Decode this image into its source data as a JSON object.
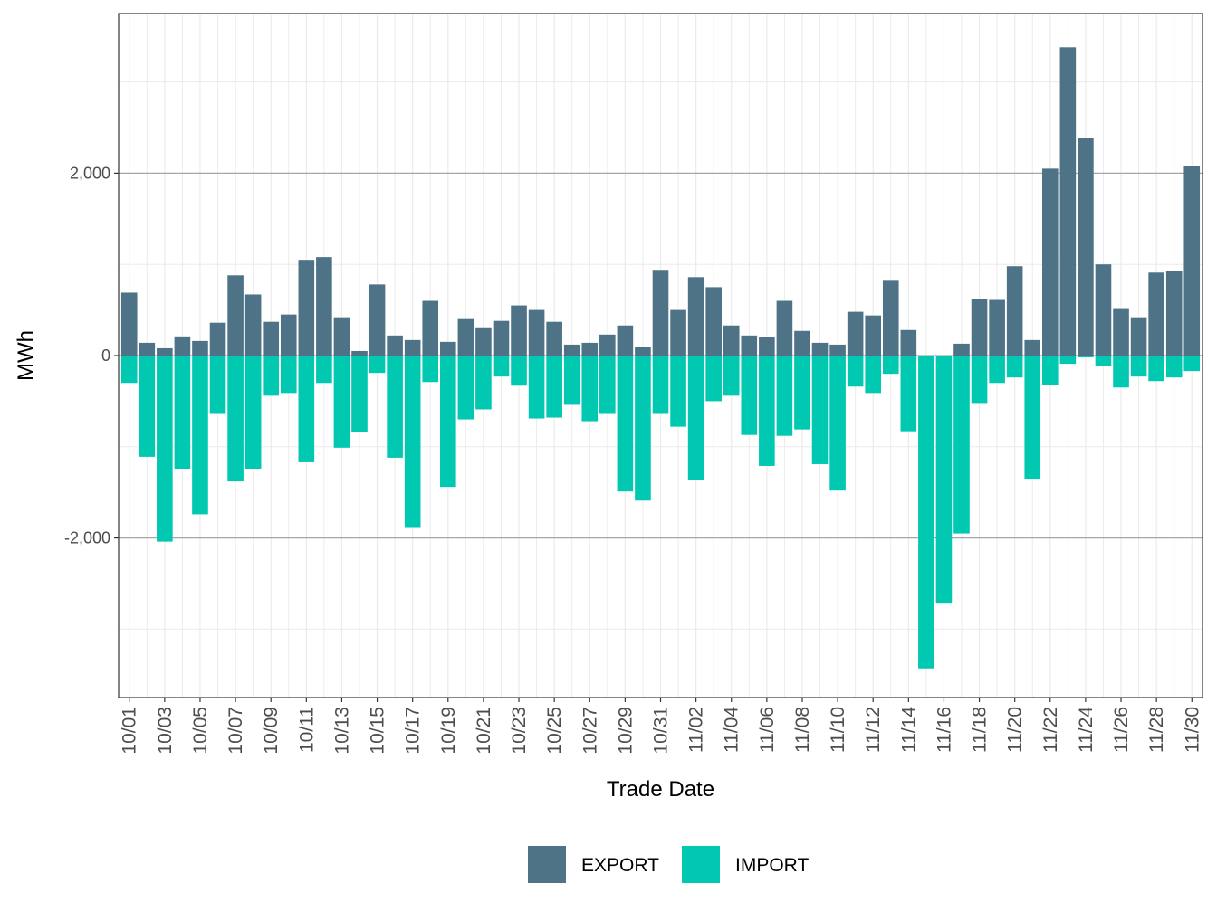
{
  "chart_data": {
    "type": "bar",
    "title": "",
    "xlabel": "Trade Date",
    "ylabel": "MWh",
    "ylim": [
      -3750,
      3750
    ],
    "yticks": [
      -2000,
      0,
      2000
    ],
    "ytick_labels": [
      "-2,000",
      "0",
      "2,000"
    ],
    "grid": true,
    "legend_position": "bottom",
    "categories": [
      "10/01",
      "10/02",
      "10/03",
      "10/04",
      "10/05",
      "10/06",
      "10/07",
      "10/08",
      "10/09",
      "10/10",
      "10/11",
      "10/12",
      "10/13",
      "10/14",
      "10/15",
      "10/16",
      "10/17",
      "10/18",
      "10/19",
      "10/20",
      "10/21",
      "10/22",
      "10/23",
      "10/24",
      "10/25",
      "10/26",
      "10/27",
      "10/28",
      "10/29",
      "10/30",
      "10/31",
      "11/01",
      "11/02",
      "11/03",
      "11/04",
      "11/05",
      "11/06",
      "11/07",
      "11/08",
      "11/09",
      "11/10",
      "11/11",
      "11/12",
      "11/13",
      "11/14",
      "11/15",
      "11/16",
      "11/17",
      "11/18",
      "11/19",
      "11/20",
      "11/21",
      "11/22",
      "11/23",
      "11/24",
      "11/25",
      "11/26",
      "11/27",
      "11/28",
      "11/29",
      "11/30"
    ],
    "xtick_labels": [
      "10/01",
      "10/03",
      "10/05",
      "10/07",
      "10/09",
      "10/11",
      "10/13",
      "10/15",
      "10/17",
      "10/19",
      "10/21",
      "10/23",
      "10/25",
      "10/27",
      "10/29",
      "10/31",
      "11/02",
      "11/04",
      "11/06",
      "11/08",
      "11/10",
      "11/12",
      "11/14",
      "11/16",
      "11/18",
      "11/20",
      "11/22",
      "11/24",
      "11/26",
      "11/28",
      "11/30"
    ],
    "series": [
      {
        "name": "EXPORT",
        "color": "#4e7387",
        "values": [
          690,
          140,
          80,
          210,
          160,
          360,
          880,
          670,
          370,
          450,
          1050,
          1080,
          420,
          50,
          780,
          220,
          170,
          600,
          150,
          400,
          310,
          380,
          550,
          500,
          370,
          120,
          140,
          230,
          330,
          90,
          940,
          500,
          860,
          750,
          330,
          220,
          200,
          600,
          270,
          140,
          120,
          480,
          440,
          820,
          280,
          0,
          0,
          130,
          620,
          610,
          980,
          170,
          2050,
          3380,
          2390,
          1000,
          520,
          420,
          910,
          930,
          2080
        ]
      },
      {
        "name": "IMPORT",
        "color": "#00c8b1",
        "values": [
          -300,
          -1110,
          -2040,
          -1240,
          -1740,
          -640,
          -1380,
          -1240,
          -440,
          -410,
          -1170,
          -300,
          -1010,
          -840,
          -190,
          -1120,
          -1890,
          -290,
          -1440,
          -700,
          -590,
          -230,
          -330,
          -690,
          -680,
          -540,
          -720,
          -640,
          -1490,
          -1590,
          -640,
          -780,
          -1360,
          -500,
          -440,
          -870,
          -1210,
          -880,
          -810,
          -1190,
          -1480,
          -340,
          -410,
          -200,
          -830,
          -3430,
          -2720,
          -1950,
          -520,
          -300,
          -240,
          -1350,
          -320,
          -90,
          -20,
          -110,
          -350,
          -230,
          -280,
          -240,
          -170
        ]
      }
    ]
  }
}
